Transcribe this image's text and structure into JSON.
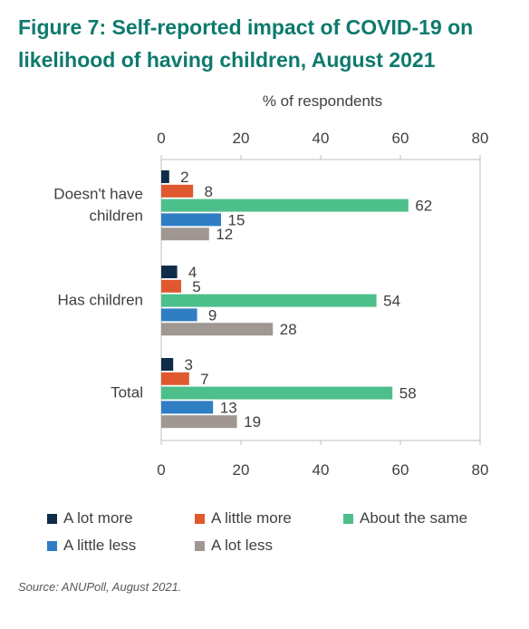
{
  "title_line1": "Figure 7: Self-reported impact of COVID-19 on",
  "title_line2": "likelihood of having children, August 2021",
  "source": "Source: ANUPoll, August 2021.",
  "chart_data": {
    "type": "bar",
    "orientation": "horizontal",
    "axis_label": "% of respondents",
    "xlim": [
      0,
      80
    ],
    "ticks": [
      0,
      20,
      40,
      60,
      80
    ],
    "tick_labels": [
      "0",
      "20",
      "40",
      "60",
      "80"
    ],
    "axis_ticks_top_and_bottom": true,
    "grid": false,
    "legend_position": "bottom",
    "categories": [
      "Doesn't have children",
      "Has children",
      "Total"
    ],
    "category_labels": [
      [
        "Doesn't have",
        "children"
      ],
      [
        "Has children"
      ],
      [
        "Total"
      ]
    ],
    "series": [
      {
        "name": "A lot more",
        "color": "#0f2d4a",
        "values": [
          2,
          4,
          3
        ]
      },
      {
        "name": "A little more",
        "color": "#e0582e",
        "values": [
          8,
          5,
          7
        ]
      },
      {
        "name": "About the same",
        "color": "#4cbf8a",
        "values": [
          62,
          54,
          58
        ]
      },
      {
        "name": "A little less",
        "color": "#2f7ec4",
        "values": [
          15,
          9,
          13
        ]
      },
      {
        "name": "A lot less",
        "color": "#a09792",
        "values": [
          12,
          28,
          19
        ]
      }
    ]
  }
}
